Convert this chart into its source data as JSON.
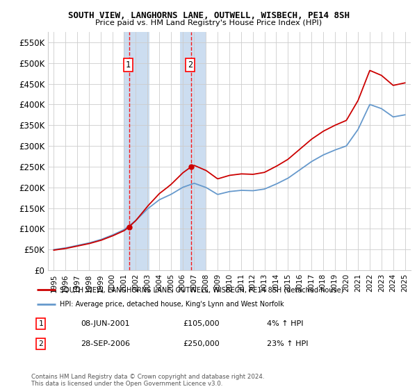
{
  "title": "SOUTH VIEW, LANGHORNS LANE, OUTWELL, WISBECH, PE14 8SH",
  "subtitle": "Price paid vs. HM Land Registry's House Price Index (HPI)",
  "legend_line1": "SOUTH VIEW, LANGHORNS LANE, OUTWELL, WISBECH, PE14 8SH (detached house)",
  "legend_line2": "HPI: Average price, detached house, King's Lynn and West Norfolk",
  "footnote": "Contains HM Land Registry data © Crown copyright and database right 2024.\nThis data is licensed under the Open Government Licence v3.0.",
  "transaction1_date": "08-JUN-2001",
  "transaction1_price": "£105,000",
  "transaction1_hpi": "4% ↑ HPI",
  "transaction2_date": "28-SEP-2006",
  "transaction2_price": "£250,000",
  "transaction2_hpi": "23% ↑ HPI",
  "sale1_x": 2001.44,
  "sale1_y": 105000,
  "sale2_x": 2006.74,
  "sale2_y": 250000,
  "property_color": "#cc0000",
  "hpi_color": "#6699cc",
  "background_color": "#ffffff",
  "grid_color": "#cccccc",
  "shading_color": "#ccddf0",
  "ylim": [
    0,
    575000
  ],
  "yticks": [
    0,
    50000,
    100000,
    150000,
    200000,
    250000,
    300000,
    350000,
    400000,
    450000,
    500000,
    550000
  ],
  "ytick_labels": [
    "£0",
    "£50K",
    "£100K",
    "£150K",
    "£200K",
    "£250K",
    "£300K",
    "£350K",
    "£400K",
    "£450K",
    "£500K",
    "£550K"
  ],
  "xlim": [
    1994.5,
    2025.5
  ],
  "xticks": [
    1995,
    1996,
    1997,
    1998,
    1999,
    2000,
    2001,
    2002,
    2003,
    2004,
    2005,
    2006,
    2007,
    2008,
    2009,
    2010,
    2011,
    2012,
    2013,
    2014,
    2015,
    2016,
    2017,
    2018,
    2019,
    2020,
    2021,
    2022,
    2023,
    2024,
    2025
  ],
  "hpi_knots_x": [
    1995,
    1996,
    1997,
    1998,
    1999,
    2000,
    2001,
    2002,
    2003,
    2004,
    2005,
    2006,
    2007,
    2008,
    2009,
    2010,
    2011,
    2012,
    2013,
    2014,
    2015,
    2016,
    2017,
    2018,
    2019,
    2020,
    2021,
    2022,
    2023,
    2024,
    2025
  ],
  "hpi_knots_y": [
    50000,
    54000,
    60000,
    66000,
    74000,
    85000,
    98000,
    120000,
    148000,
    170000,
    183000,
    200000,
    210000,
    200000,
    183000,
    190000,
    193000,
    192000,
    196000,
    208000,
    222000,
    242000,
    262000,
    278000,
    290000,
    300000,
    340000,
    400000,
    390000,
    370000,
    375000
  ]
}
